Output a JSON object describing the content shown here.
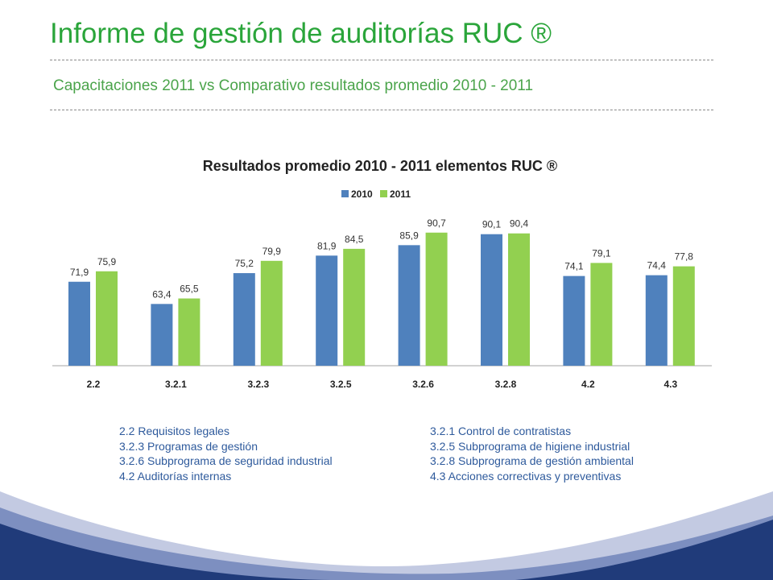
{
  "header": {
    "title": "Informe de gestión de auditorías RUC ®",
    "subtitle": "Capacitaciones 2011 vs Comparativo resultados promedio 2010 - 2011"
  },
  "chart_data": {
    "type": "bar",
    "title": "Resultados promedio 2010 - 2011 elementos RUC ®",
    "categories": [
      "2.2",
      "3.2.1",
      "3.2.3",
      "3.2.5",
      "3.2.6",
      "3.2.8",
      "4.2",
      "4.3"
    ],
    "series": [
      {
        "name": "2010",
        "color": "#4f81bd",
        "values": [
          71.9,
          63.4,
          75.2,
          81.9,
          85.9,
          90.1,
          74.1,
          74.4
        ],
        "labels": [
          "71,9",
          "63,4",
          "75,2",
          "81,9",
          "85,9",
          "90,1",
          "74,1",
          "74,4"
        ]
      },
      {
        "name": "2011",
        "color": "#92d050",
        "values": [
          75.9,
          65.5,
          79.9,
          84.5,
          90.7,
          90.4,
          79.1,
          77.8
        ],
        "labels": [
          "75,9",
          "65,5",
          "79,9",
          "84,5",
          "90,7",
          "90,4",
          "79,1",
          "77,8"
        ]
      }
    ],
    "ylim": [
      0,
      100
    ],
    "grid": false,
    "legend": "top-center",
    "xlabel": "",
    "ylabel": ""
  },
  "notes": {
    "left": [
      "2.2 Requisitos legales",
      "3.2.3 Programas de gestión",
      "3.2.6 Subprograma de seguridad industrial",
      "4.2 Auditorías internas"
    ],
    "right": [
      "3.2.1 Control de contratistas",
      "3.2.5 Subprograma de higiene industrial",
      "3.2.8 Subprograma de gestión ambiental",
      "4.3 Acciones correctivas y preventivas"
    ]
  },
  "colors": {
    "title": "#2aa53a",
    "subtitle": "#4ba44b",
    "notes": "#2e5a9c",
    "wave_dark": "#203b7a",
    "wave_mid": "#7d8fc0",
    "wave_light": "#c3cae2"
  }
}
